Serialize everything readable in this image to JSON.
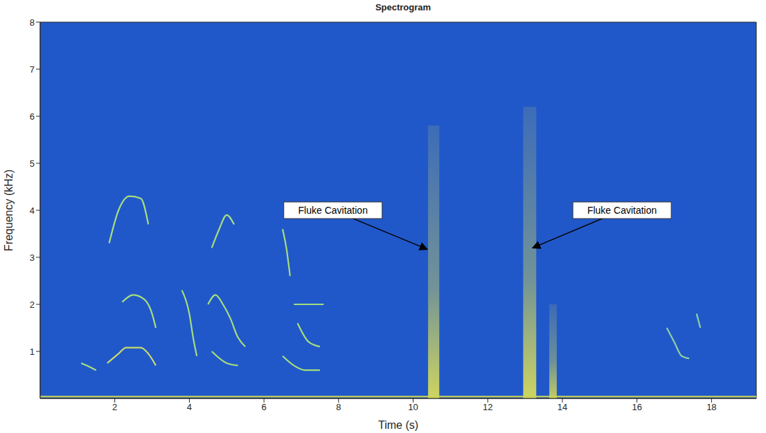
{
  "chart_data": {
    "type": "spectrogram",
    "title": "Spectrogram",
    "x_label": "Time (s)",
    "y_label": "Frequency (kHz)",
    "xlim": [
      0,
      19.2
    ],
    "ylim": [
      0,
      8
    ],
    "xticks": [
      2,
      4,
      6,
      8,
      10,
      12,
      14,
      16,
      18
    ],
    "yticks": [
      1,
      2,
      3,
      4,
      5,
      6,
      7,
      8
    ],
    "grid": false,
    "color": "#2158c9",
    "series": [
      {
        "x": [
          0,
          19.2
        ],
        "values": [
          0.04,
          0.04
        ],
        "color": "#c9d35c"
      },
      {
        "x": [
          1.85,
          2.1,
          2.4,
          2.7,
          2.9
        ],
        "values": [
          3.3,
          4.0,
          4.3,
          4.25,
          3.7
        ],
        "color": "#a6de7e"
      },
      {
        "x": [
          2.2,
          2.5,
          2.8,
          3.0,
          3.1
        ],
        "values": [
          2.05,
          2.2,
          2.1,
          1.8,
          1.5
        ],
        "color": "#a6de7e"
      },
      {
        "x": [
          1.8,
          2.1,
          2.3,
          2.7,
          2.9,
          3.1
        ],
        "values": [
          0.75,
          0.95,
          1.08,
          1.08,
          0.95,
          0.7
        ],
        "color": "#c9dc6a"
      },
      {
        "x": [
          1.1,
          1.3,
          1.5
        ],
        "values": [
          0.75,
          0.68,
          0.6
        ],
        "color": "#a6de7e"
      },
      {
        "x": [
          3.8,
          4.0,
          4.1,
          4.2
        ],
        "values": [
          2.3,
          1.8,
          1.3,
          0.9
        ],
        "color": "#a6de7e"
      },
      {
        "x": [
          4.6,
          4.8,
          5.0,
          5.2
        ],
        "values": [
          3.2,
          3.6,
          3.9,
          3.7
        ],
        "color": "#a6de7e"
      },
      {
        "x": [
          4.5,
          4.7,
          4.9,
          5.1,
          5.3,
          5.5
        ],
        "values": [
          2.0,
          2.2,
          2.0,
          1.7,
          1.3,
          1.1
        ],
        "color": "#a6de7e"
      },
      {
        "x": [
          4.6,
          5.0,
          5.3
        ],
        "values": [
          1.0,
          0.75,
          0.7
        ],
        "color": "#a6de7e"
      },
      {
        "x": [
          6.5,
          6.6,
          6.7
        ],
        "values": [
          3.6,
          3.2,
          2.6
        ],
        "color": "#a6de7e"
      },
      {
        "x": [
          6.8,
          7.2,
          7.6
        ],
        "values": [
          2.0,
          2.0,
          2.0
        ],
        "color": "#a6de7e"
      },
      {
        "x": [
          6.9,
          7.2,
          7.5
        ],
        "values": [
          1.6,
          1.2,
          1.1
        ],
        "color": "#a6de7e"
      },
      {
        "x": [
          6.5,
          6.8,
          7.1,
          7.5
        ],
        "values": [
          0.9,
          0.7,
          0.6,
          0.6
        ],
        "color": "#a6de7e"
      },
      {
        "x": [
          16.8,
          17.0,
          17.2,
          17.4
        ],
        "values": [
          1.5,
          1.2,
          0.9,
          0.85
        ],
        "color": "#8fd0a0"
      },
      {
        "x": [
          17.6,
          17.7
        ],
        "values": [
          1.8,
          1.5
        ],
        "color": "#8fd0a0"
      }
    ],
    "bands": [
      {
        "x": [
          10.4,
          10.7
        ],
        "y": [
          0,
          5.8
        ],
        "color": "#d7dc5a"
      },
      {
        "x": [
          12.95,
          13.3
        ],
        "y": [
          0,
          6.2
        ],
        "color": "#d7dc5a"
      },
      {
        "x": [
          13.65,
          13.85
        ],
        "y": [
          0,
          2.0
        ],
        "color": "#c9d35c"
      }
    ],
    "annotations": [
      {
        "text": "Fluke Cavitation",
        "xy": [
          10.38,
          3.17
        ],
        "xytext": [
          7.85,
          4.0
        ]
      },
      {
        "text": "Fluke Cavitation",
        "xy": [
          13.2,
          3.2
        ],
        "xytext": [
          15.6,
          4.0
        ]
      }
    ]
  }
}
